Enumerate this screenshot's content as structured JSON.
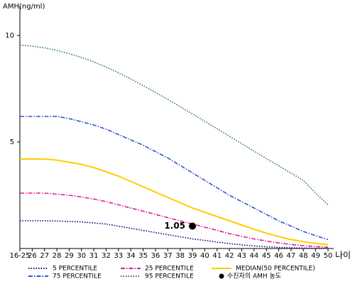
{
  "chart_data": {
    "type": "line",
    "y_label": "AMH(ng/ml)",
    "x_label": "나이",
    "categories": [
      "16-25",
      "26",
      "27",
      "28",
      "29",
      "30",
      "31",
      "32",
      "33",
      "34",
      "35",
      "36",
      "37",
      "38",
      "39",
      "40",
      "41",
      "42",
      "43",
      "44",
      "45",
      "46",
      "47",
      "48",
      "49",
      "50"
    ],
    "ylim": [
      0,
      11.4
    ],
    "yticks": [
      5,
      10
    ],
    "series": [
      {
        "name": "5 PERCENTILE",
        "color": "#000080",
        "dash": "dotted",
        "values": [
          1.3,
          1.3,
          1.3,
          1.29,
          1.27,
          1.25,
          1.2,
          1.15,
          1.05,
          0.95,
          0.85,
          0.75,
          0.65,
          0.55,
          0.45,
          0.38,
          0.3,
          0.23,
          0.17,
          0.12,
          0.08,
          0.05,
          0.03,
          0.02,
          0.01,
          0.01
        ]
      },
      {
        "name": "25 PERCENTILE",
        "color": "#e0208f",
        "dash": "dashdot",
        "values": [
          2.6,
          2.6,
          2.6,
          2.55,
          2.5,
          2.42,
          2.32,
          2.2,
          2.05,
          1.9,
          1.75,
          1.6,
          1.45,
          1.3,
          1.15,
          1.0,
          0.85,
          0.7,
          0.57,
          0.45,
          0.35,
          0.26,
          0.19,
          0.13,
          0.09,
          0.06
        ]
      },
      {
        "name": "MEDIAN(50 PERCENTILE)",
        "color": "#ffcc00",
        "dash": "solid",
        "values": [
          4.2,
          4.2,
          4.2,
          4.15,
          4.05,
          3.95,
          3.8,
          3.6,
          3.4,
          3.15,
          2.9,
          2.65,
          2.4,
          2.15,
          1.9,
          1.7,
          1.5,
          1.3,
          1.1,
          0.9,
          0.72,
          0.56,
          0.42,
          0.32,
          0.24,
          0.18
        ]
      },
      {
        "name": "75 PERCENTILE",
        "color": "#3355cc",
        "dash": "dashdot",
        "values": [
          6.2,
          6.2,
          6.2,
          6.2,
          6.1,
          5.95,
          5.8,
          5.6,
          5.35,
          5.1,
          4.85,
          4.55,
          4.25,
          3.9,
          3.55,
          3.2,
          2.85,
          2.5,
          2.2,
          1.9,
          1.6,
          1.3,
          1.05,
          0.8,
          0.6,
          0.42
        ]
      },
      {
        "name": "95 PERCENTILE",
        "color": "#2e7d32",
        "dash": "dotted",
        "values": [
          9.55,
          9.5,
          9.42,
          9.3,
          9.15,
          8.97,
          8.76,
          8.52,
          8.25,
          7.96,
          7.65,
          7.33,
          7.0,
          6.66,
          6.32,
          5.97,
          5.62,
          5.27,
          4.92,
          4.57,
          4.22,
          3.88,
          3.54,
          3.2,
          2.6,
          2.05
        ]
      }
    ],
    "patient": {
      "name": "수진자의 AMH 농도",
      "color": "#000000",
      "category": "39",
      "value": 1.05
    }
  }
}
